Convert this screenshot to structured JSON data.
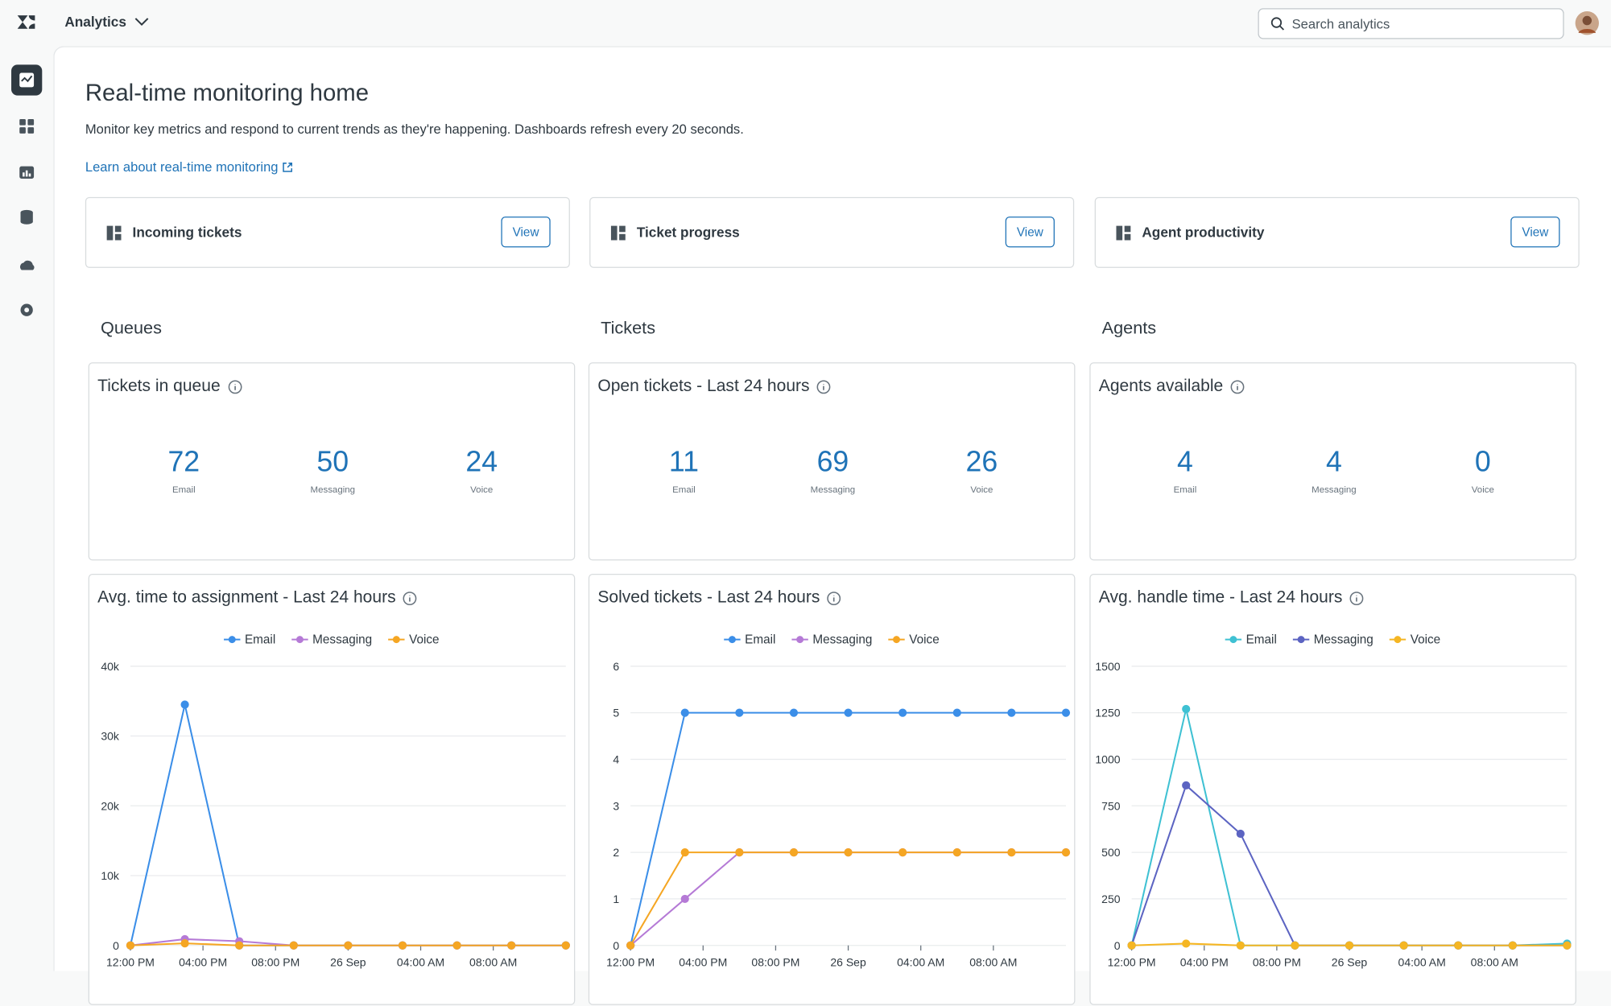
{
  "app": {
    "name": "Analytics",
    "search_placeholder": "Search analytics"
  },
  "page": {
    "title": "Real-time monitoring home",
    "subtitle": "Monitor key metrics and respond to current trends as they're happening. Dashboards refresh every 20 seconds.",
    "link": "Learn about real-time monitoring"
  },
  "dashboards": [
    {
      "name": "Incoming tickets",
      "action": "View"
    },
    {
      "name": "Ticket progress",
      "action": "View"
    },
    {
      "name": "Agent productivity",
      "action": "View"
    }
  ],
  "sections": [
    "Queues",
    "Tickets",
    "Agents"
  ],
  "metrics": [
    {
      "title": "Tickets in queue",
      "items": [
        {
          "value": 72,
          "label": "Email"
        },
        {
          "value": 50,
          "label": "Messaging"
        },
        {
          "value": 24,
          "label": "Voice"
        }
      ]
    },
    {
      "title": "Open tickets - Last 24 hours",
      "items": [
        {
          "value": 11,
          "label": "Email"
        },
        {
          "value": 69,
          "label": "Messaging"
        },
        {
          "value": 26,
          "label": "Voice"
        }
      ]
    },
    {
      "title": "Agents available",
      "items": [
        {
          "value": 4,
          "label": "Email"
        },
        {
          "value": 4,
          "label": "Messaging"
        },
        {
          "value": 0,
          "label": "Voice"
        }
      ]
    }
  ],
  "chart_data": [
    {
      "type": "line",
      "title": "Avg. time to assignment - Last 24 hours",
      "x": [
        0,
        3,
        6,
        9,
        12,
        15,
        18,
        21,
        24
      ],
      "xlim": [
        0,
        24
      ],
      "xticks": [
        {
          "value": 0,
          "label": "12:00 PM"
        },
        {
          "value": 4,
          "label": "04:00 PM"
        },
        {
          "value": 8,
          "label": "08:00 PM"
        },
        {
          "value": 12,
          "label": "26 Sep"
        },
        {
          "value": 16,
          "label": "04:00 AM"
        },
        {
          "value": 20,
          "label": "08:00 AM"
        }
      ],
      "ylim": [
        0,
        40000
      ],
      "yticks": [
        0,
        {
          "value": 10000,
          "label": "10k"
        },
        {
          "value": 20000,
          "label": "20k"
        },
        {
          "value": 30000,
          "label": "30k"
        },
        {
          "value": 40000,
          "label": "40k"
        }
      ],
      "grid": true,
      "series": [
        {
          "name": "Email",
          "color": "#3b8ee8",
          "values": [
            0,
            34500,
            0,
            0,
            0,
            0,
            0,
            0,
            0
          ]
        },
        {
          "name": "Messaging",
          "color": "#b57ad6",
          "values": [
            0,
            900,
            600,
            0,
            0,
            0,
            0,
            0,
            0
          ]
        },
        {
          "name": "Voice",
          "color": "#f5a623",
          "values": [
            0,
            300,
            0,
            0,
            0,
            0,
            0,
            0,
            0
          ]
        }
      ]
    },
    {
      "type": "line",
      "title": "Solved tickets - Last 24 hours",
      "x": [
        0,
        3,
        6,
        9,
        12,
        15,
        18,
        21,
        24
      ],
      "xlim": [
        0,
        24
      ],
      "xticks": [
        {
          "value": 0,
          "label": "12:00 PM"
        },
        {
          "value": 4,
          "label": "04:00 PM"
        },
        {
          "value": 8,
          "label": "08:00 PM"
        },
        {
          "value": 12,
          "label": "26 Sep"
        },
        {
          "value": 16,
          "label": "04:00 AM"
        },
        {
          "value": 20,
          "label": "08:00 AM"
        }
      ],
      "ylim": [
        0,
        6
      ],
      "yticks": [
        0,
        1,
        2,
        3,
        4,
        5,
        6
      ],
      "grid": true,
      "series": [
        {
          "name": "Email",
          "color": "#3b8ee8",
          "values": [
            0,
            5,
            5,
            5,
            5,
            5,
            5,
            5,
            5
          ]
        },
        {
          "name": "Messaging",
          "color": "#b57ad6",
          "values": [
            0,
            1,
            2,
            2,
            2,
            2,
            2,
            2,
            2
          ]
        },
        {
          "name": "Voice",
          "color": "#f5a623",
          "values": [
            0,
            2,
            2,
            2,
            2,
            2,
            2,
            2,
            2
          ]
        }
      ]
    },
    {
      "type": "line",
      "title": "Avg. handle time - Last 24 hours",
      "x": [
        0,
        3,
        6,
        9,
        12,
        15,
        18,
        21,
        24
      ],
      "xlim": [
        0,
        24
      ],
      "xticks": [
        {
          "value": 0,
          "label": "12:00 PM"
        },
        {
          "value": 4,
          "label": "04:00 PM"
        },
        {
          "value": 8,
          "label": "08:00 PM"
        },
        {
          "value": 12,
          "label": "26 Sep"
        },
        {
          "value": 16,
          "label": "04:00 AM"
        },
        {
          "value": 20,
          "label": "08:00 AM"
        }
      ],
      "ylim": [
        0,
        1500
      ],
      "yticks": [
        0,
        250,
        500,
        750,
        1000,
        1250,
        1500
      ],
      "grid": true,
      "series": [
        {
          "name": "Email",
          "color": "#3fc1d3",
          "values": [
            0,
            1270,
            0,
            0,
            0,
            0,
            0,
            0,
            10
          ]
        },
        {
          "name": "Messaging",
          "color": "#5c64c2",
          "values": [
            0,
            860,
            600,
            0,
            0,
            0,
            0,
            0,
            0
          ]
        },
        {
          "name": "Voice",
          "color": "#f5b623",
          "values": [
            0,
            10,
            0,
            0,
            0,
            0,
            0,
            0,
            0
          ]
        }
      ]
    }
  ]
}
